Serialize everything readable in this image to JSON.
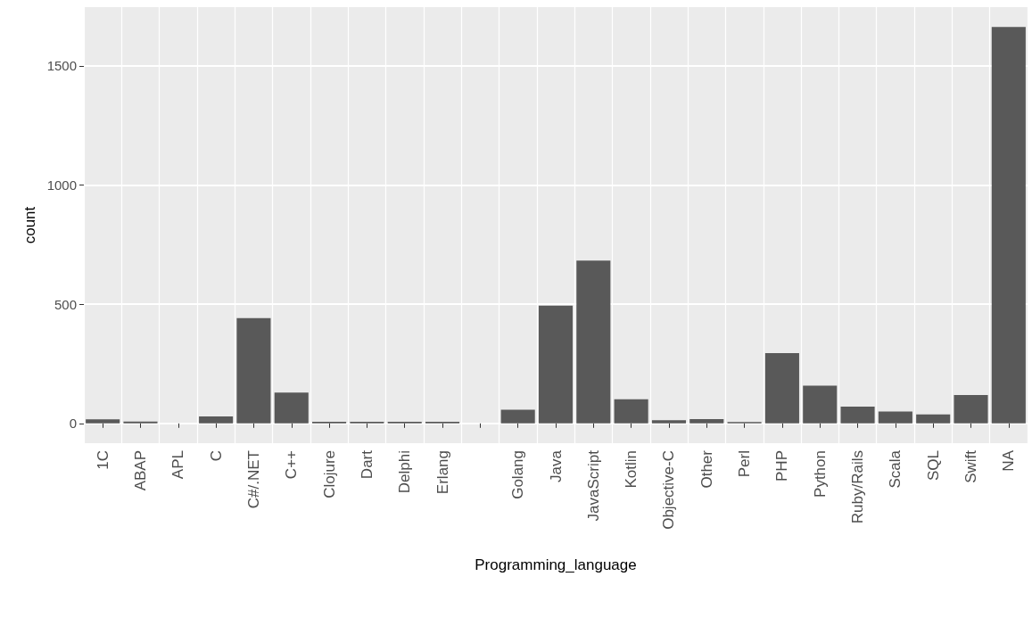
{
  "chart_data": {
    "type": "bar",
    "xlabel": "Programming_language",
    "ylabel": "count",
    "categories": [
      "1C",
      "ABAP",
      "APL",
      "C",
      "C#/.NET",
      "C++",
      "Clojure",
      "Dart",
      "Delphi",
      "Erlang",
      null,
      "Golang",
      "Java",
      "JavaScript",
      "Kotlin",
      "Objective-C",
      "Other",
      "Perl",
      "PHP",
      "Python",
      "Ruby/Rails",
      "Scala",
      "SQL",
      "Swift",
      "NA"
    ],
    "values": [
      17,
      8,
      0,
      29,
      442,
      129,
      7,
      7,
      7,
      7,
      0,
      57,
      494,
      683,
      101,
      13,
      18,
      6,
      295,
      158,
      70,
      50,
      38,
      119,
      1663
    ],
    "color": "#595959",
    "ylim": [
      -83,
      1746
    ],
    "yticks": [
      0,
      500,
      1000,
      1500
    ],
    "grid": true
  }
}
